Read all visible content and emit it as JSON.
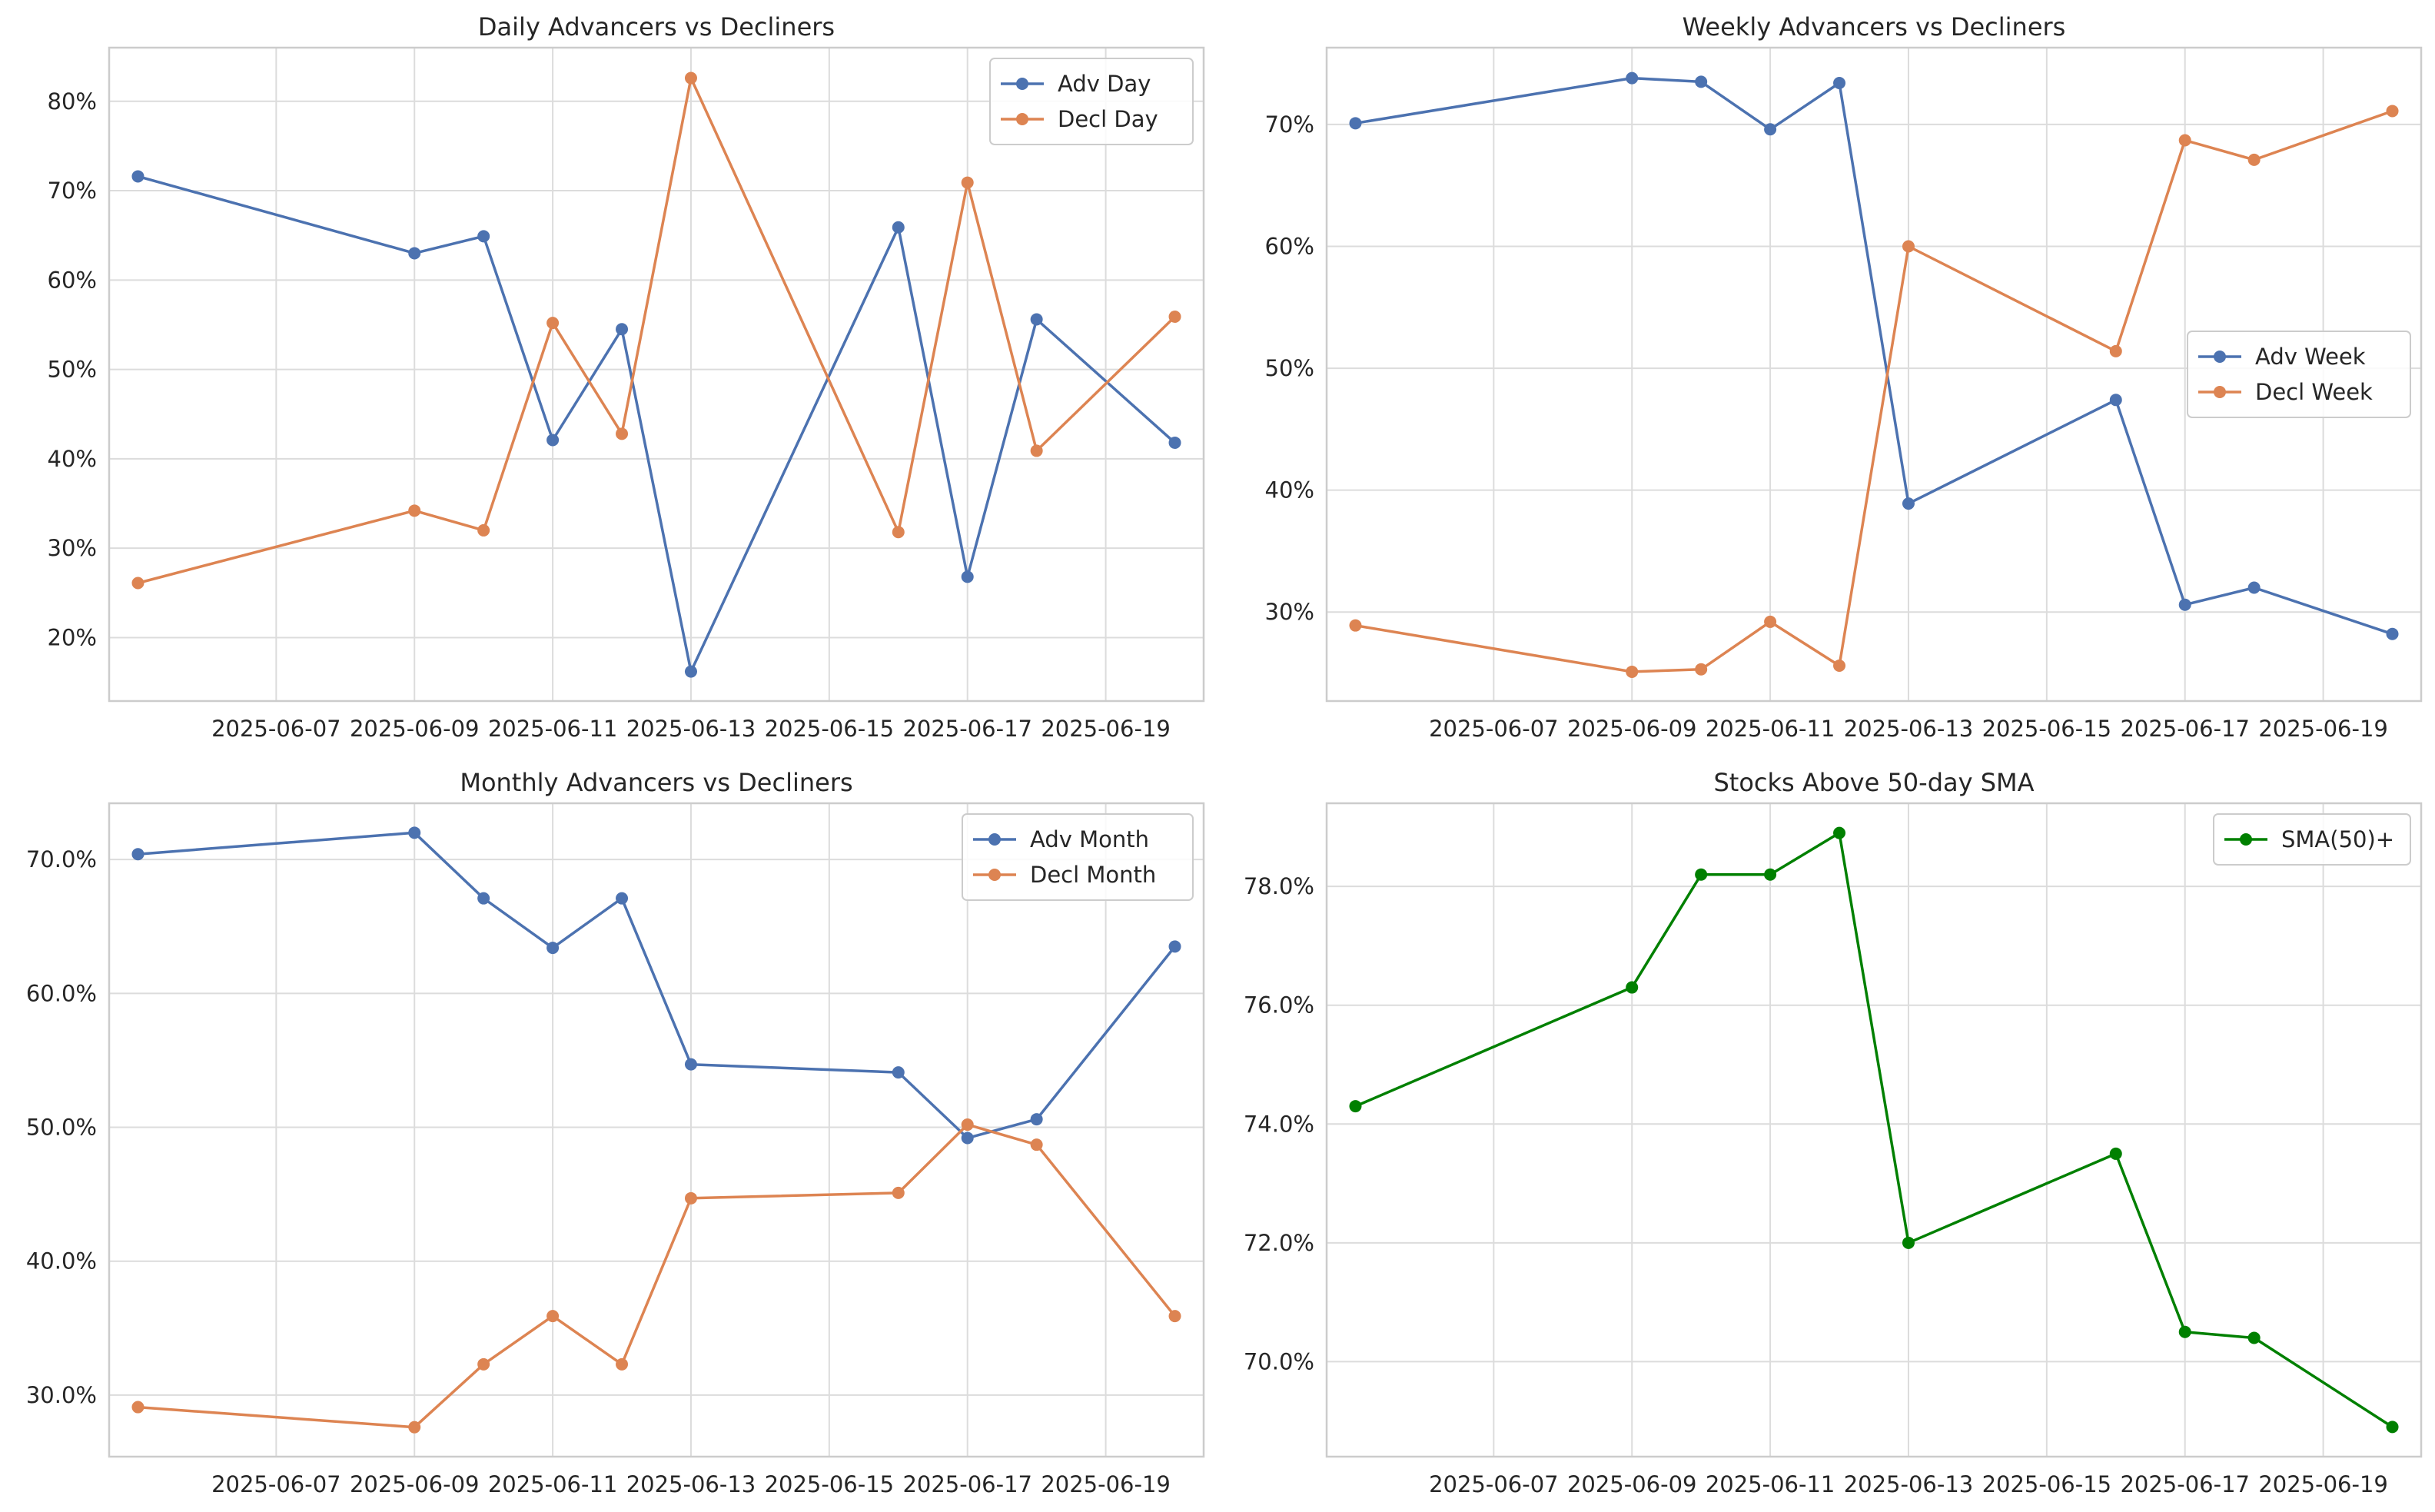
{
  "chart_data": [
    {
      "type": "line",
      "title": "Daily Advancers vs Decliners",
      "xlabel": "",
      "ylabel": "",
      "x": [
        "2025-06-05",
        "2025-06-09",
        "2025-06-10",
        "2025-06-11",
        "2025-06-12",
        "2025-06-13",
        "2025-06-16",
        "2025-06-17",
        "2025-06-18",
        "2025-06-20"
      ],
      "series": [
        {
          "name": "Adv Day",
          "color": "#4c72b0",
          "values": [
            71.6,
            63.0,
            64.9,
            42.1,
            54.5,
            16.2,
            65.9,
            26.8,
            55.6,
            41.8
          ]
        },
        {
          "name": "Decl Day",
          "color": "#dd8452",
          "values": [
            26.1,
            34.2,
            32.0,
            55.2,
            42.8,
            82.6,
            31.8,
            70.9,
            40.9,
            55.9
          ]
        }
      ],
      "x_ticks": [
        "2025-06-07",
        "2025-06-09",
        "2025-06-11",
        "2025-06-13",
        "2025-06-15",
        "2025-06-17",
        "2025-06-19"
      ],
      "y_ticks": [
        20,
        30,
        40,
        50,
        60,
        70,
        80
      ],
      "y_tick_labels": [
        "20%",
        "30%",
        "40%",
        "50%",
        "60%",
        "70%",
        "80%"
      ],
      "ylim": [
        12.9,
        86.0
      ],
      "grid": true,
      "legend": "upper right"
    },
    {
      "type": "line",
      "title": "Weekly Advancers vs Decliners",
      "xlabel": "",
      "ylabel": "",
      "x": [
        "2025-06-05",
        "2025-06-09",
        "2025-06-10",
        "2025-06-11",
        "2025-06-12",
        "2025-06-13",
        "2025-06-16",
        "2025-06-17",
        "2025-06-18",
        "2025-06-20"
      ],
      "series": [
        {
          "name": "Adv Week",
          "color": "#4c72b0",
          "values": [
            70.1,
            73.8,
            73.5,
            69.6,
            73.4,
            38.9,
            47.4,
            30.6,
            32.0,
            28.2
          ]
        },
        {
          "name": "Decl Week",
          "color": "#dd8452",
          "values": [
            28.9,
            25.1,
            25.3,
            29.2,
            25.6,
            60.0,
            51.4,
            68.7,
            67.1,
            71.1
          ]
        }
      ],
      "x_ticks": [
        "2025-06-07",
        "2025-06-09",
        "2025-06-11",
        "2025-06-13",
        "2025-06-15",
        "2025-06-17",
        "2025-06-19"
      ],
      "y_ticks": [
        30,
        40,
        50,
        60,
        70
      ],
      "y_tick_labels": [
        "30%",
        "40%",
        "50%",
        "60%",
        "70%"
      ],
      "ylim": [
        22.7,
        76.3
      ],
      "grid": true,
      "legend": "center right"
    },
    {
      "type": "line",
      "title": "Monthly Advancers vs Decliners",
      "xlabel": "",
      "ylabel": "",
      "x": [
        "2025-06-05",
        "2025-06-09",
        "2025-06-10",
        "2025-06-11",
        "2025-06-12",
        "2025-06-13",
        "2025-06-16",
        "2025-06-17",
        "2025-06-18",
        "2025-06-20"
      ],
      "series": [
        {
          "name": "Adv Month",
          "color": "#4c72b0",
          "values": [
            70.4,
            72.0,
            67.1,
            63.4,
            67.1,
            54.7,
            54.1,
            49.2,
            50.6,
            63.5
          ]
        },
        {
          "name": "Decl Month",
          "color": "#dd8452",
          "values": [
            29.1,
            27.6,
            32.3,
            35.9,
            32.3,
            44.7,
            45.1,
            50.2,
            48.7,
            35.9
          ]
        }
      ],
      "x_ticks": [
        "2025-06-07",
        "2025-06-09",
        "2025-06-11",
        "2025-06-13",
        "2025-06-15",
        "2025-06-17",
        "2025-06-19"
      ],
      "y_ticks": [
        30,
        40,
        50,
        60,
        70
      ],
      "y_tick_labels": [
        "30.0%",
        "40.0%",
        "50.0%",
        "60.0%",
        "70.0%"
      ],
      "ylim": [
        25.4,
        74.2
      ],
      "grid": true,
      "legend": "upper right"
    },
    {
      "type": "line",
      "title": "Stocks Above 50-day SMA",
      "xlabel": "",
      "ylabel": "",
      "x": [
        "2025-06-05",
        "2025-06-09",
        "2025-06-10",
        "2025-06-11",
        "2025-06-12",
        "2025-06-13",
        "2025-06-16",
        "2025-06-17",
        "2025-06-18",
        "2025-06-20"
      ],
      "series": [
        {
          "name": "SMA(50)+",
          "color": "#008000",
          "values": [
            74.3,
            76.3,
            78.2,
            78.2,
            78.9,
            72.0,
            73.5,
            70.5,
            70.4,
            68.9
          ]
        }
      ],
      "x_ticks": [
        "2025-06-07",
        "2025-06-09",
        "2025-06-11",
        "2025-06-13",
        "2025-06-15",
        "2025-06-17",
        "2025-06-19"
      ],
      "y_ticks": [
        70,
        72,
        74,
        76,
        78
      ],
      "y_tick_labels": [
        "70.0%",
        "72.0%",
        "74.0%",
        "76.0%",
        "78.0%"
      ],
      "ylim": [
        68.4,
        79.4
      ],
      "grid": true,
      "legend": "upper right"
    }
  ]
}
